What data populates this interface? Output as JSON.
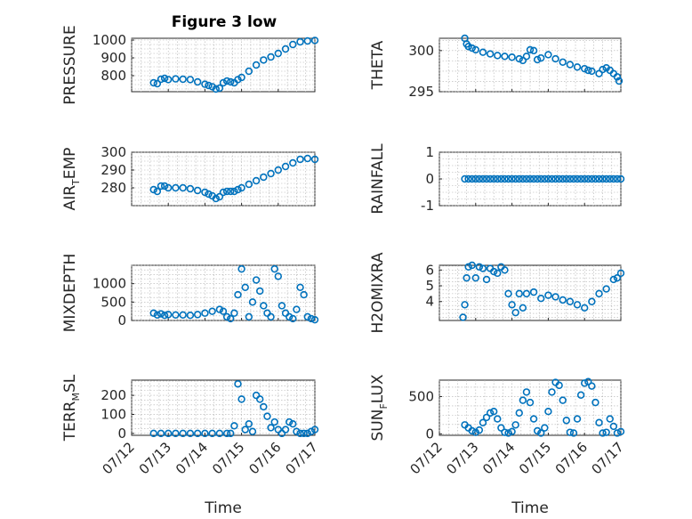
{
  "figure": {
    "title": "Figure 3 low",
    "marker_color": "#0072BD"
  },
  "chart_data": [
    {
      "type": "scatter",
      "title": "Figure 3 low",
      "ylabel": "PRESSURE",
      "xlabel": "",
      "xlim": [
        0,
        5
      ],
      "ylim": [
        710,
        1010
      ],
      "yticks": [
        800,
        900,
        1000
      ],
      "xtick_labels": [],
      "grid": true,
      "series": [
        {
          "x": [
            0.6,
            0.7,
            0.8,
            0.9,
            1.0,
            1.2,
            1.4,
            1.6,
            1.8,
            2.0,
            2.1,
            2.2,
            2.3,
            2.4,
            2.5,
            2.6,
            2.7,
            2.8,
            2.9,
            3.0,
            3.2,
            3.4,
            3.6,
            3.8,
            4.0,
            4.2,
            4.4,
            4.6,
            4.8,
            5.0
          ],
          "y": [
            760,
            755,
            780,
            785,
            778,
            782,
            780,
            778,
            765,
            752,
            745,
            738,
            725,
            730,
            760,
            770,
            765,
            760,
            778,
            790,
            825,
            860,
            888,
            905,
            925,
            950,
            975,
            990,
            995,
            998
          ]
        }
      ]
    },
    {
      "type": "scatter",
      "ylabel": "THETA",
      "xlabel": "",
      "xlim": [
        0,
        5
      ],
      "ylim": [
        295,
        301.5
      ],
      "yticks": [
        295,
        300
      ],
      "xtick_labels": [],
      "grid": true,
      "series": [
        {
          "x": [
            0.7,
            0.75,
            0.8,
            0.9,
            1.0,
            1.2,
            1.4,
            1.6,
            1.8,
            2.0,
            2.2,
            2.3,
            2.4,
            2.5,
            2.6,
            2.7,
            2.8,
            3.0,
            3.2,
            3.4,
            3.6,
            3.8,
            4.0,
            4.1,
            4.2,
            4.4,
            4.5,
            4.6,
            4.7,
            4.8,
            4.9,
            4.95
          ],
          "y": [
            301.5,
            300.8,
            300.5,
            300.3,
            300.1,
            299.8,
            299.6,
            299.4,
            299.3,
            299.2,
            299.0,
            298.8,
            299.3,
            300.1,
            300.0,
            298.9,
            299.1,
            299.5,
            299.0,
            298.6,
            298.3,
            298.0,
            297.8,
            297.6,
            297.5,
            297.2,
            297.7,
            297.9,
            297.6,
            297.2,
            296.8,
            296.3
          ]
        }
      ]
    },
    {
      "type": "scatter",
      "ylabel": "AIR_TEMP",
      "xlabel": "",
      "xlim": [
        0,
        5
      ],
      "ylim": [
        270,
        300
      ],
      "yticks": [
        280,
        290,
        300
      ],
      "xtick_labels": [],
      "grid": true,
      "series": [
        {
          "x": [
            0.6,
            0.7,
            0.8,
            0.9,
            1.0,
            1.2,
            1.4,
            1.6,
            1.8,
            2.0,
            2.1,
            2.2,
            2.3,
            2.4,
            2.5,
            2.6,
            2.7,
            2.8,
            2.9,
            3.0,
            3.2,
            3.4,
            3.6,
            3.8,
            4.0,
            4.2,
            4.4,
            4.6,
            4.8,
            5.0
          ],
          "y": [
            279,
            278,
            281,
            281,
            280,
            280,
            280,
            279.5,
            278.5,
            277.5,
            276.5,
            275.5,
            274,
            275,
            277.5,
            278,
            278,
            278,
            279,
            280,
            282,
            284,
            286,
            288,
            290,
            292,
            294,
            296,
            296.5,
            296
          ]
        }
      ]
    },
    {
      "type": "scatter",
      "ylabel": "RAINFALL",
      "xlabel": "",
      "xlim": [
        0,
        5
      ],
      "ylim": [
        -1,
        1
      ],
      "yticks": [
        -1,
        0,
        1
      ],
      "xtick_labels": [],
      "grid": true,
      "series": [
        {
          "x": [
            0.7,
            0.8,
            0.9,
            1.0,
            1.1,
            1.2,
            1.3,
            1.4,
            1.5,
            1.6,
            1.7,
            1.8,
            1.9,
            2.0,
            2.1,
            2.2,
            2.3,
            2.4,
            2.5,
            2.6,
            2.7,
            2.8,
            2.9,
            3.0,
            3.1,
            3.2,
            3.3,
            3.4,
            3.5,
            3.6,
            3.7,
            3.8,
            3.9,
            4.0,
            4.1,
            4.2,
            4.3,
            4.4,
            4.5,
            4.6,
            4.7,
            4.8,
            4.9,
            5.0
          ],
          "y": [
            0,
            0,
            0,
            0,
            0,
            0,
            0,
            0,
            0,
            0,
            0,
            0,
            0,
            0,
            0,
            0,
            0,
            0,
            0,
            0,
            0,
            0,
            0,
            0,
            0,
            0,
            0,
            0,
            0,
            0,
            0,
            0,
            0,
            0,
            0,
            0,
            0,
            0,
            0,
            0,
            0,
            0,
            0,
            0
          ]
        }
      ]
    },
    {
      "type": "scatter",
      "ylabel": "MIXDEPTH",
      "xlabel": "",
      "xlim": [
        0,
        5
      ],
      "ylim": [
        0,
        1500
      ],
      "yticks": [
        0,
        500,
        1000
      ],
      "xtick_labels": [],
      "grid": true,
      "series": [
        {
          "x": [
            0.6,
            0.7,
            0.8,
            0.9,
            1.0,
            1.2,
            1.4,
            1.6,
            1.8,
            2.0,
            2.2,
            2.4,
            2.5,
            2.6,
            2.7,
            2.8,
            2.9,
            3.0,
            3.1,
            3.2,
            3.3,
            3.4,
            3.5,
            3.6,
            3.7,
            3.8,
            3.9,
            4.0,
            4.1,
            4.2,
            4.3,
            4.4,
            4.5,
            4.6,
            4.7,
            4.8,
            4.9,
            5.0
          ],
          "y": [
            200,
            150,
            180,
            140,
            160,
            150,
            150,
            140,
            160,
            200,
            250,
            300,
            250,
            100,
            50,
            200,
            700,
            1400,
            900,
            100,
            500,
            1100,
            800,
            400,
            200,
            100,
            1400,
            1200,
            400,
            200,
            100,
            50,
            300,
            900,
            700,
            100,
            50,
            20
          ]
        }
      ]
    },
    {
      "type": "scatter",
      "ylabel": "H2OMIXRA",
      "xlabel": "",
      "xlim": [
        0,
        5
      ],
      "ylim": [
        2.8,
        6.3
      ],
      "yticks": [
        4,
        5,
        6
      ],
      "xtick_labels": [],
      "grid": true,
      "series": [
        {
          "x": [
            0.65,
            0.7,
            0.75,
            0.8,
            0.9,
            1.0,
            1.1,
            1.2,
            1.3,
            1.4,
            1.5,
            1.6,
            1.7,
            1.8,
            1.9,
            2.0,
            2.1,
            2.2,
            2.3,
            2.4,
            2.6,
            2.8,
            3.0,
            3.2,
            3.4,
            3.6,
            3.8,
            4.0,
            4.2,
            4.4,
            4.6,
            4.8,
            4.9,
            5.0
          ],
          "y": [
            3.0,
            3.8,
            5.5,
            6.2,
            6.3,
            5.5,
            6.2,
            6.1,
            5.4,
            6.1,
            5.9,
            5.8,
            6.2,
            6.0,
            4.5,
            3.8,
            3.3,
            4.5,
            3.6,
            4.5,
            4.6,
            4.2,
            4.4,
            4.3,
            4.1,
            4.0,
            3.8,
            3.6,
            4.0,
            4.5,
            4.8,
            5.4,
            5.5,
            5.8
          ]
        }
      ]
    },
    {
      "type": "scatter",
      "ylabel": "TERR_MSL",
      "xlabel": "Time",
      "xlim": [
        0,
        5
      ],
      "ylim": [
        -10,
        280
      ],
      "yticks": [
        0,
        100,
        200
      ],
      "xtick_labels": [
        "07/12",
        "07/13",
        "07/14",
        "07/15",
        "07/16",
        "07/17"
      ],
      "grid": true,
      "series": [
        {
          "x": [
            0.6,
            0.8,
            1.0,
            1.2,
            1.4,
            1.6,
            1.8,
            2.0,
            2.2,
            2.4,
            2.6,
            2.7,
            2.8,
            2.9,
            3.0,
            3.1,
            3.2,
            3.3,
            3.4,
            3.5,
            3.6,
            3.7,
            3.8,
            3.9,
            4.0,
            4.1,
            4.2,
            4.3,
            4.4,
            4.5,
            4.6,
            4.7,
            4.8,
            4.9,
            5.0
          ],
          "y": [
            0,
            0,
            0,
            0,
            0,
            0,
            0,
            0,
            0,
            0,
            0,
            0,
            40,
            260,
            180,
            20,
            50,
            10,
            200,
            180,
            140,
            90,
            30,
            60,
            20,
            0,
            20,
            60,
            50,
            10,
            0,
            0,
            0,
            10,
            20
          ]
        }
      ]
    },
    {
      "type": "scatter",
      "ylabel": "SUN_FLUX",
      "xlabel": "Time",
      "xlim": [
        0,
        5
      ],
      "ylim": [
        -20,
        720
      ],
      "yticks": [
        0,
        500
      ],
      "xtick_labels": [
        "07/12",
        "07/13",
        "07/14",
        "07/15",
        "07/16",
        "07/17"
      ],
      "grid": true,
      "series": [
        {
          "x": [
            0.7,
            0.8,
            0.9,
            1.0,
            1.1,
            1.2,
            1.3,
            1.4,
            1.5,
            1.6,
            1.7,
            1.8,
            1.9,
            2.0,
            2.1,
            2.2,
            2.3,
            2.4,
            2.5,
            2.6,
            2.7,
            2.8,
            2.9,
            3.0,
            3.1,
            3.2,
            3.3,
            3.4,
            3.5,
            3.6,
            3.7,
            3.8,
            3.9,
            4.0,
            4.1,
            4.2,
            4.3,
            4.4,
            4.5,
            4.6,
            4.7,
            4.8,
            4.9,
            5.0
          ],
          "y": [
            120,
            80,
            40,
            20,
            50,
            150,
            220,
            280,
            300,
            200,
            80,
            20,
            10,
            30,
            120,
            280,
            450,
            560,
            420,
            200,
            40,
            10,
            80,
            300,
            560,
            690,
            650,
            450,
            180,
            20,
            10,
            200,
            520,
            680,
            700,
            640,
            420,
            150,
            10,
            20,
            200,
            100,
            10,
            30
          ]
        }
      ]
    }
  ]
}
